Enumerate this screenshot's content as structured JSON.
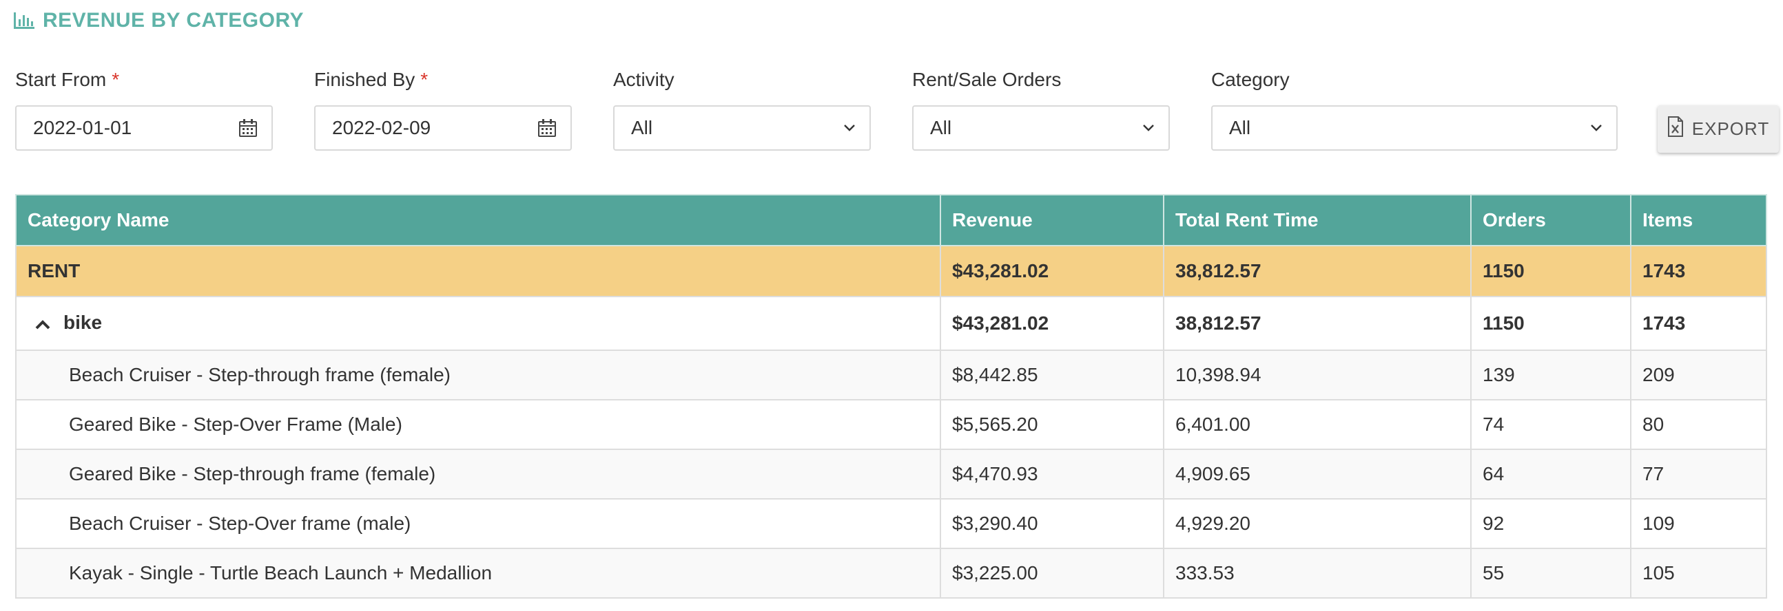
{
  "page": {
    "title": "REVENUE BY CATEGORY",
    "title_icon": "bar-chart-icon",
    "accent": "#5fb3a8"
  },
  "filters": {
    "start_from": {
      "label": "Start From",
      "required_mark": "*",
      "value": "2022-01-01",
      "icon": "calendar-icon"
    },
    "finished_by": {
      "label": "Finished By",
      "required_mark": "*",
      "value": "2022-02-09",
      "icon": "calendar-icon"
    },
    "activity": {
      "label": "Activity",
      "value": "All"
    },
    "rent_sale_orders": {
      "label": "Rent/Sale Orders",
      "value": "All"
    },
    "category": {
      "label": "Category",
      "value": "All"
    }
  },
  "export_label": "EXPORT",
  "table": {
    "header_color": "#53a59a",
    "group_color": "#f5d086",
    "columns": [
      "Category Name",
      "Revenue",
      "Total Rent Time",
      "Orders",
      "Items"
    ],
    "group": {
      "name": "RENT",
      "revenue": "$43,281.02",
      "rent_time": "38,812.57",
      "orders": "1150",
      "items": "1743"
    },
    "subgroup": {
      "name": "bike",
      "revenue": "$43,281.02",
      "rent_time": "38,812.57",
      "orders": "1150",
      "items": "1743"
    },
    "rows": [
      {
        "name": "Beach Cruiser - Step-through frame (female)",
        "revenue": "$8,442.85",
        "rent_time": "10,398.94",
        "orders": "139",
        "items": "209"
      },
      {
        "name": "Geared Bike - Step-Over Frame (Male)",
        "revenue": "$5,565.20",
        "rent_time": "6,401.00",
        "orders": "74",
        "items": "80"
      },
      {
        "name": "Geared Bike - Step-through frame (female)",
        "revenue": "$4,470.93",
        "rent_time": "4,909.65",
        "orders": "64",
        "items": "77"
      },
      {
        "name": "Beach Cruiser - Step-Over frame (male)",
        "revenue": "$3,290.40",
        "rent_time": "4,929.20",
        "orders": "92",
        "items": "109"
      },
      {
        "name": "Kayak - Single - Turtle Beach Launch + Medallion",
        "revenue": "$3,225.00",
        "rent_time": "333.53",
        "orders": "55",
        "items": "105"
      }
    ]
  }
}
